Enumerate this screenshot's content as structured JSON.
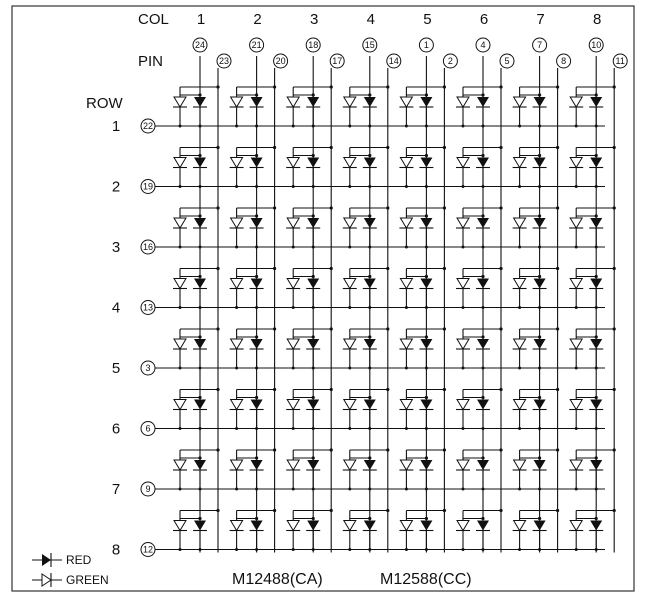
{
  "labels": {
    "col": "COL",
    "pin": "PIN",
    "row": "ROW"
  },
  "columns": [
    {
      "num": "1",
      "anode_pin": "24",
      "cathode_pin": "23"
    },
    {
      "num": "2",
      "anode_pin": "21",
      "cathode_pin": "20"
    },
    {
      "num": "3",
      "anode_pin": "18",
      "cathode_pin": "17"
    },
    {
      "num": "4",
      "anode_pin": "15",
      "cathode_pin": "14"
    },
    {
      "num": "5",
      "anode_pin": "1",
      "cathode_pin": "2"
    },
    {
      "num": "6",
      "anode_pin": "4",
      "cathode_pin": "5"
    },
    {
      "num": "7",
      "anode_pin": "7",
      "cathode_pin": "8"
    },
    {
      "num": "8",
      "anode_pin": "10",
      "cathode_pin": "11"
    }
  ],
  "rows": [
    {
      "num": "1",
      "pin": "22"
    },
    {
      "num": "2",
      "pin": "19"
    },
    {
      "num": "3",
      "pin": "16"
    },
    {
      "num": "4",
      "pin": "13"
    },
    {
      "num": "5",
      "pin": "3"
    },
    {
      "num": "6",
      "pin": "6"
    },
    {
      "num": "7",
      "pin": "9"
    },
    {
      "num": "8",
      "pin": "12"
    }
  ],
  "legend": {
    "red": "RED",
    "green": "GREEN"
  },
  "part_numbers": {
    "ca": "M12488(CA)",
    "cc": "M12588(CC)"
  }
}
